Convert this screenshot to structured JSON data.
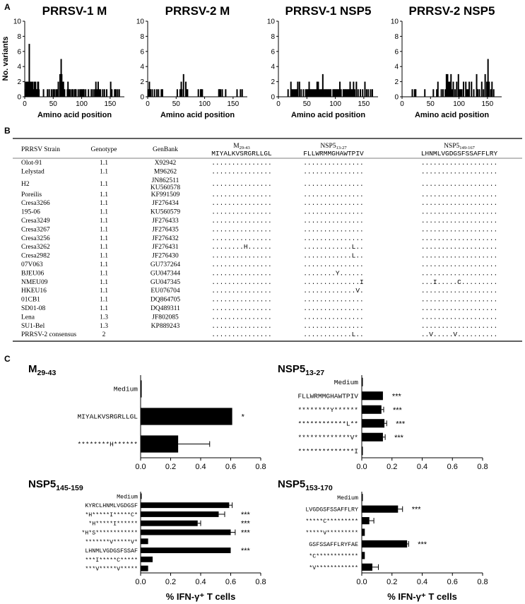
{
  "panel_labels": {
    "a": "A",
    "b": "B",
    "c": "C"
  },
  "panel_a": {
    "ylabel": "No. variants",
    "xlabel": "Amino acid position",
    "yticks": [
      "0",
      "2",
      "4",
      "6",
      "8",
      "10"
    ],
    "xticks": [
      "0",
      "50",
      "100",
      "150"
    ]
  },
  "panel_b": {
    "headers": {
      "strain": "PRRSV Strain",
      "genotype": "Genotype",
      "genbank": "GenBank"
    },
    "peptides": [
      {
        "name": "M",
        "sub": "29-43",
        "seq": "MIYALKVSRGRLLGL"
      },
      {
        "name": "NSP5",
        "sub": "13-27",
        "seq": "FLLWRMMGHAWTPIV"
      },
      {
        "name": "NSP5",
        "sub": "149-167",
        "seq": "LHNMLVGDGSFSSAFFLRY"
      }
    ],
    "rows": [
      {
        "strain": "Olot-91",
        "genotype": "1.1",
        "genbank": [
          "X92942"
        ],
        "m": "...............",
        "n13": "...............",
        "n149": "..................."
      },
      {
        "strain": "Lelystad",
        "genotype": "1.1",
        "genbank": [
          "M96262"
        ],
        "m": "...............",
        "n13": "...............",
        "n149": "..................."
      },
      {
        "strain": "H2",
        "genotype": "1.1",
        "genbank": [
          "JN862511",
          "KU560578"
        ],
        "m": "...............",
        "n13": "...............",
        "n149": "..................."
      },
      {
        "strain": "Poreilis",
        "genotype": "1.1",
        "genbank": [
          "KF991509"
        ],
        "m": "...............",
        "n13": "...............",
        "n149": "..................."
      },
      {
        "strain": "Cresa3266",
        "genotype": "1.1",
        "genbank": [
          "JF276434"
        ],
        "m": "...............",
        "n13": "...............",
        "n149": "..................."
      },
      {
        "strain": "195-06",
        "genotype": "1.1",
        "genbank": [
          "KU560579"
        ],
        "m": "...............",
        "n13": "...............",
        "n149": "..................."
      },
      {
        "strain": "Cresa3249",
        "genotype": "1.1",
        "genbank": [
          "JF276433"
        ],
        "m": "...............",
        "n13": "...............",
        "n149": "..................."
      },
      {
        "strain": "Cresa3267",
        "genotype": "1.1",
        "genbank": [
          "JF276435"
        ],
        "m": "...............",
        "n13": "...............",
        "n149": "..................."
      },
      {
        "strain": "Cresa3256",
        "genotype": "1.1",
        "genbank": [
          "JF276432"
        ],
        "m": "...............",
        "n13": "...............",
        "n149": "..................."
      },
      {
        "strain": "Cresa3262",
        "genotype": "1.1",
        "genbank": [
          "JF276431"
        ],
        "m": "........H......",
        "n13": "............L..",
        "n149": "..................."
      },
      {
        "strain": "Cresa2982",
        "genotype": "1.1",
        "genbank": [
          "JF276430"
        ],
        "m": "...............",
        "n13": "............L..",
        "n149": "..................."
      },
      {
        "strain": "07V063",
        "genotype": "1.1",
        "genbank": [
          "GU737264"
        ],
        "m": "...............",
        "n13": "...............",
        "n149": "..................."
      },
      {
        "strain": "BJEU06",
        "genotype": "1.1",
        "genbank": [
          "GU047344"
        ],
        "m": "...............",
        "n13": "........Y......",
        "n149": "..................."
      },
      {
        "strain": "NMEU09",
        "genotype": "1.1",
        "genbank": [
          "GU047345"
        ],
        "m": "...............",
        "n13": "..............I",
        "n149": "...I.....C........."
      },
      {
        "strain": "HKEU16",
        "genotype": "1.1",
        "genbank": [
          "EU076704"
        ],
        "m": "...............",
        "n13": ".............V.",
        "n149": "..................."
      },
      {
        "strain": "01CB1",
        "genotype": "1.1",
        "genbank": [
          "DQ864705"
        ],
        "m": "...............",
        "n13": "...............",
        "n149": "..................."
      },
      {
        "strain": "SD01-08",
        "genotype": "1.1",
        "genbank": [
          "DQ489311"
        ],
        "m": "...............",
        "n13": "...............",
        "n149": "..................."
      },
      {
        "strain": "Lena",
        "genotype": "1.3",
        "genbank": [
          "JF802085"
        ],
        "m": "...............",
        "n13": "...............",
        "n149": "..................."
      },
      {
        "strain": "SU1-Bel",
        "genotype": "1.3",
        "genbank": [
          "KP889243"
        ],
        "m": "...............",
        "n13": "...............",
        "n149": "..................."
      },
      {
        "strain": "PRRSV-2 consensus",
        "genotype": "2",
        "genbank": [
          ""
        ],
        "m": "...............",
        "n13": "............L..",
        "n149": "..V.....V.........."
      }
    ]
  },
  "panel_c": {
    "xlabel": "% IFN-γ⁺ T cells"
  },
  "colors": {
    "bar": "#000000",
    "line": "#000000"
  },
  "chart_data": [
    {
      "type": "bar",
      "title": "PRRSV-1 M",
      "xlim": [
        0,
        175
      ],
      "ylim": [
        0,
        10
      ],
      "x": [
        1,
        2,
        3,
        4,
        5,
        6,
        7,
        8,
        9,
        10,
        11,
        12,
        13,
        14,
        15,
        16,
        17,
        18,
        19,
        20,
        21,
        22,
        23,
        24,
        25,
        33,
        40,
        43,
        47,
        50,
        52,
        55,
        57,
        59,
        62,
        63,
        64,
        65,
        66,
        67,
        68,
        69,
        70,
        75,
        76,
        78,
        80,
        83,
        85,
        88,
        89,
        90,
        94,
        97,
        99,
        101,
        103,
        104,
        107,
        112,
        117,
        120,
        123,
        125,
        127,
        129,
        131,
        133,
        137,
        140,
        144,
        151,
        153,
        158,
        160,
        163,
        166
      ],
      "values": [
        1,
        2,
        1,
        2,
        2,
        2,
        1,
        7,
        2,
        2,
        1,
        2,
        1,
        2,
        1,
        1,
        2,
        1,
        2,
        1,
        1,
        1,
        2,
        2,
        1,
        1,
        1,
        1,
        1,
        1,
        1,
        1,
        1,
        2,
        3,
        2,
        5,
        3,
        2,
        1,
        2,
        1,
        1,
        1,
        2,
        1,
        1,
        1,
        1,
        1,
        1,
        1,
        1,
        1,
        1,
        1,
        1,
        1,
        1,
        1,
        1,
        1,
        1,
        2,
        1,
        2,
        1,
        1,
        1,
        1,
        1,
        2,
        1,
        1,
        1,
        1,
        1
      ]
    },
    {
      "type": "bar",
      "title": "PRRSV-2 M",
      "xlim": [
        0,
        175
      ],
      "ylim": [
        0,
        10
      ],
      "x": [
        1,
        3,
        4,
        5,
        8,
        12,
        16,
        19,
        24,
        26,
        52,
        57,
        59,
        60,
        63,
        67,
        69,
        70,
        89,
        93,
        94,
        96,
        125,
        126,
        128,
        131,
        137,
        157,
        163,
        166
      ],
      "values": [
        1,
        2,
        1,
        1,
        1,
        1,
        1,
        1,
        1,
        1,
        1,
        1,
        2,
        1,
        3,
        2,
        1,
        1,
        1,
        1,
        1,
        1,
        1,
        1,
        1,
        1,
        1,
        1,
        1,
        1
      ]
    },
    {
      "type": "bar",
      "title": "PRRSV-1 NSP5",
      "xlim": [
        0,
        175
      ],
      "ylim": [
        0,
        10
      ],
      "x": [
        17,
        22,
        24,
        26,
        28,
        30,
        32,
        33,
        34,
        37,
        40,
        44,
        48,
        50,
        52,
        54,
        56,
        58,
        60,
        62,
        64,
        66,
        68,
        70,
        72,
        74,
        76,
        78,
        80,
        82,
        84,
        86,
        88,
        90,
        92,
        96,
        98,
        100,
        102,
        104,
        106,
        108,
        110,
        114,
        116,
        118,
        120,
        122,
        124,
        126,
        128,
        130,
        132,
        134,
        137,
        140,
        144,
        148,
        152,
        155,
        158,
        162,
        165
      ],
      "values": [
        1,
        2,
        1,
        1,
        1,
        1,
        1,
        1,
        2,
        2,
        1,
        1,
        1,
        1,
        1,
        2,
        1,
        1,
        1,
        1,
        1,
        1,
        2,
        2,
        1,
        1,
        1,
        3,
        1,
        1,
        1,
        1,
        1,
        1,
        1,
        1,
        1,
        1,
        1,
        1,
        1,
        2,
        1,
        1,
        1,
        1,
        1,
        1,
        1,
        2,
        1,
        1,
        2,
        1,
        2,
        1,
        1,
        1,
        2,
        1,
        1,
        1,
        1
      ]
    },
    {
      "type": "bar",
      "title": "PRRSV-2 NSP5",
      "xlim": [
        0,
        175
      ],
      "ylim": [
        0,
        10
      ],
      "x": [
        18,
        22,
        24,
        40,
        55,
        61,
        63,
        69,
        72,
        76,
        78,
        80,
        82,
        84,
        86,
        88,
        90,
        93,
        96,
        99,
        101,
        103,
        105,
        108,
        112,
        114,
        116,
        118,
        122,
        126,
        131,
        133,
        136,
        140,
        143,
        146,
        149,
        151,
        153,
        156,
        158,
        161
      ],
      "values": [
        1,
        1,
        1,
        1,
        1,
        1,
        2,
        1,
        1,
        1,
        3,
        3,
        2,
        2,
        3,
        1,
        2,
        1,
        2,
        3,
        1,
        1,
        1,
        2,
        2,
        1,
        1,
        2,
        2,
        1,
        3,
        1,
        1,
        2,
        1,
        3,
        2,
        5,
        2,
        1,
        2,
        1
      ]
    },
    {
      "type": "bar",
      "orientation": "horizontal",
      "title": "M29-43",
      "title_main": "M",
      "title_sub": "29-43",
      "xlim": [
        0,
        0.8
      ],
      "xticks": [
        "0.0",
        "0.2",
        "0.4",
        "0.6",
        "0.8"
      ],
      "xlabel": "",
      "categories": [
        "Medium",
        "MIYALKVSRGRLLGL",
        "********H******"
      ],
      "values": [
        0,
        0.61,
        0.25
      ],
      "errors": [
        0,
        0,
        0.21
      ],
      "sig": [
        "",
        "*",
        ""
      ]
    },
    {
      "type": "bar",
      "orientation": "horizontal",
      "title": "NSP513-27",
      "title_main": "NSP5",
      "title_sub": "13-27",
      "xlim": [
        0,
        0.8
      ],
      "xticks": [
        "0.0",
        "0.2",
        "0.4",
        "0.6",
        "0.8"
      ],
      "xlabel": "",
      "categories": [
        "Medium",
        "FLLWRMMGHAWTPIV",
        "********Y******",
        "************L**",
        "*************V*",
        "**************I"
      ],
      "values": [
        0,
        0.14,
        0.13,
        0.15,
        0.14,
        0
      ],
      "errors": [
        0,
        0,
        0.015,
        0.015,
        0.015,
        0
      ],
      "sig": [
        "",
        "***",
        "***",
        "***",
        "***",
        ""
      ]
    },
    {
      "type": "bar",
      "orientation": "horizontal",
      "title": "NSP5145-159",
      "title_main": "NSP5",
      "title_sub": "145-159",
      "xlim": [
        0,
        0.8
      ],
      "xticks": [
        "0.0",
        "0.2",
        "0.4",
        "0.6",
        "0.8"
      ],
      "xlabel": "% IFN-γ⁺ T cells",
      "categories": [
        "Medium",
        "KYRCLHNMLVGDGSF",
        "*H*****I*****C*",
        "*H*****I******",
        "*H*S************",
        "*******V*****V*",
        "LHNMLVGDGSFSSAF",
        "***I*****C*****",
        "***V*****V*****"
      ],
      "values": [
        0,
        0.59,
        0.52,
        0.38,
        0.6,
        0.05,
        0.6,
        0.08,
        0.05
      ],
      "errors": [
        0,
        0.02,
        0.04,
        0.02,
        0.03,
        0,
        0,
        0,
        0
      ],
      "sig": [
        "",
        "",
        "***",
        "***",
        "***",
        "",
        "***",
        "",
        ""
      ]
    },
    {
      "type": "bar",
      "orientation": "horizontal",
      "title": "NSP5153-170",
      "title_main": "NSP5",
      "title_sub": "153-170",
      "xlim": [
        0,
        0.8
      ],
      "xticks": [
        "0.0",
        "0.2",
        "0.4",
        "0.6",
        "0.8"
      ],
      "xlabel": "% IFN-γ⁺ T cells",
      "categories": [
        "Medium",
        "LVGDGSFSSAFFLRY",
        "*****C*********",
        "*****V*********",
        "GSFSSAFFLRYFAE",
        "*C************",
        "*V************"
      ],
      "values": [
        0,
        0.24,
        0.05,
        0.02,
        0.3,
        0.02,
        0.07
      ],
      "errors": [
        0,
        0.03,
        0.03,
        0,
        0.01,
        0,
        0.04
      ],
      "sig": [
        "",
        "***",
        "",
        "",
        "***",
        "",
        ""
      ]
    }
  ]
}
